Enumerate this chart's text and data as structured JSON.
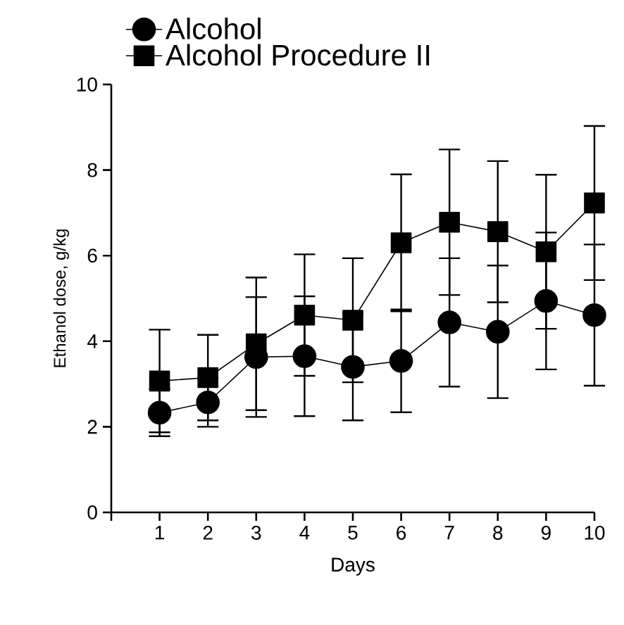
{
  "chart_data": {
    "type": "line",
    "xlabel": "Days",
    "ylabel": "Ethanol dose, g/kg",
    "x": [
      1,
      2,
      3,
      4,
      5,
      6,
      7,
      8,
      9,
      10
    ],
    "series": [
      {
        "name": "Alcohol",
        "color": "#000000",
        "marker": "circle",
        "values": [
          2.33,
          2.57,
          3.63,
          3.65,
          3.4,
          3.54,
          4.44,
          4.22,
          4.94,
          4.61
        ],
        "errors": [
          0.55,
          0.57,
          1.4,
          1.4,
          1.25,
          1.2,
          1.5,
          1.55,
          1.6,
          1.65
        ]
      },
      {
        "name": "Alcohol Procedure II",
        "color": "#000000",
        "marker": "square",
        "values": [
          3.07,
          3.15,
          3.94,
          4.61,
          4.49,
          6.3,
          6.78,
          6.56,
          6.09,
          7.23
        ],
        "errors": [
          1.2,
          1.0,
          1.55,
          1.42,
          1.45,
          1.6,
          1.7,
          1.65,
          1.8,
          1.8
        ]
      }
    ],
    "xlim": [
      0,
      10
    ],
    "xticks": [
      {
        "value": 0,
        "label": null
      },
      1,
      2,
      3,
      4,
      5,
      6,
      7,
      8,
      9,
      10
    ],
    "ylim": [
      0,
      10
    ],
    "yticks": [
      0,
      2,
      4,
      6,
      8,
      10
    ],
    "legend": "top left",
    "grid": false
  }
}
